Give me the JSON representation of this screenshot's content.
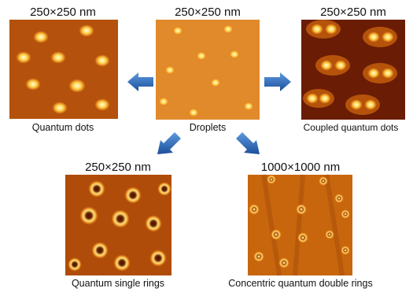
{
  "images": [
    {
      "scale": "250×250 nm",
      "caption": "Quantum dots"
    },
    {
      "scale": "250×250 nm",
      "caption": "Droplets"
    },
    {
      "scale": "250×250 nm",
      "caption": "Coupled quantum dots"
    },
    {
      "scale": "250×250 nm",
      "caption": "Quantum single rings"
    },
    {
      "scale": "1000×1000 nm",
      "caption": "Concentric quantum double rings"
    }
  ]
}
